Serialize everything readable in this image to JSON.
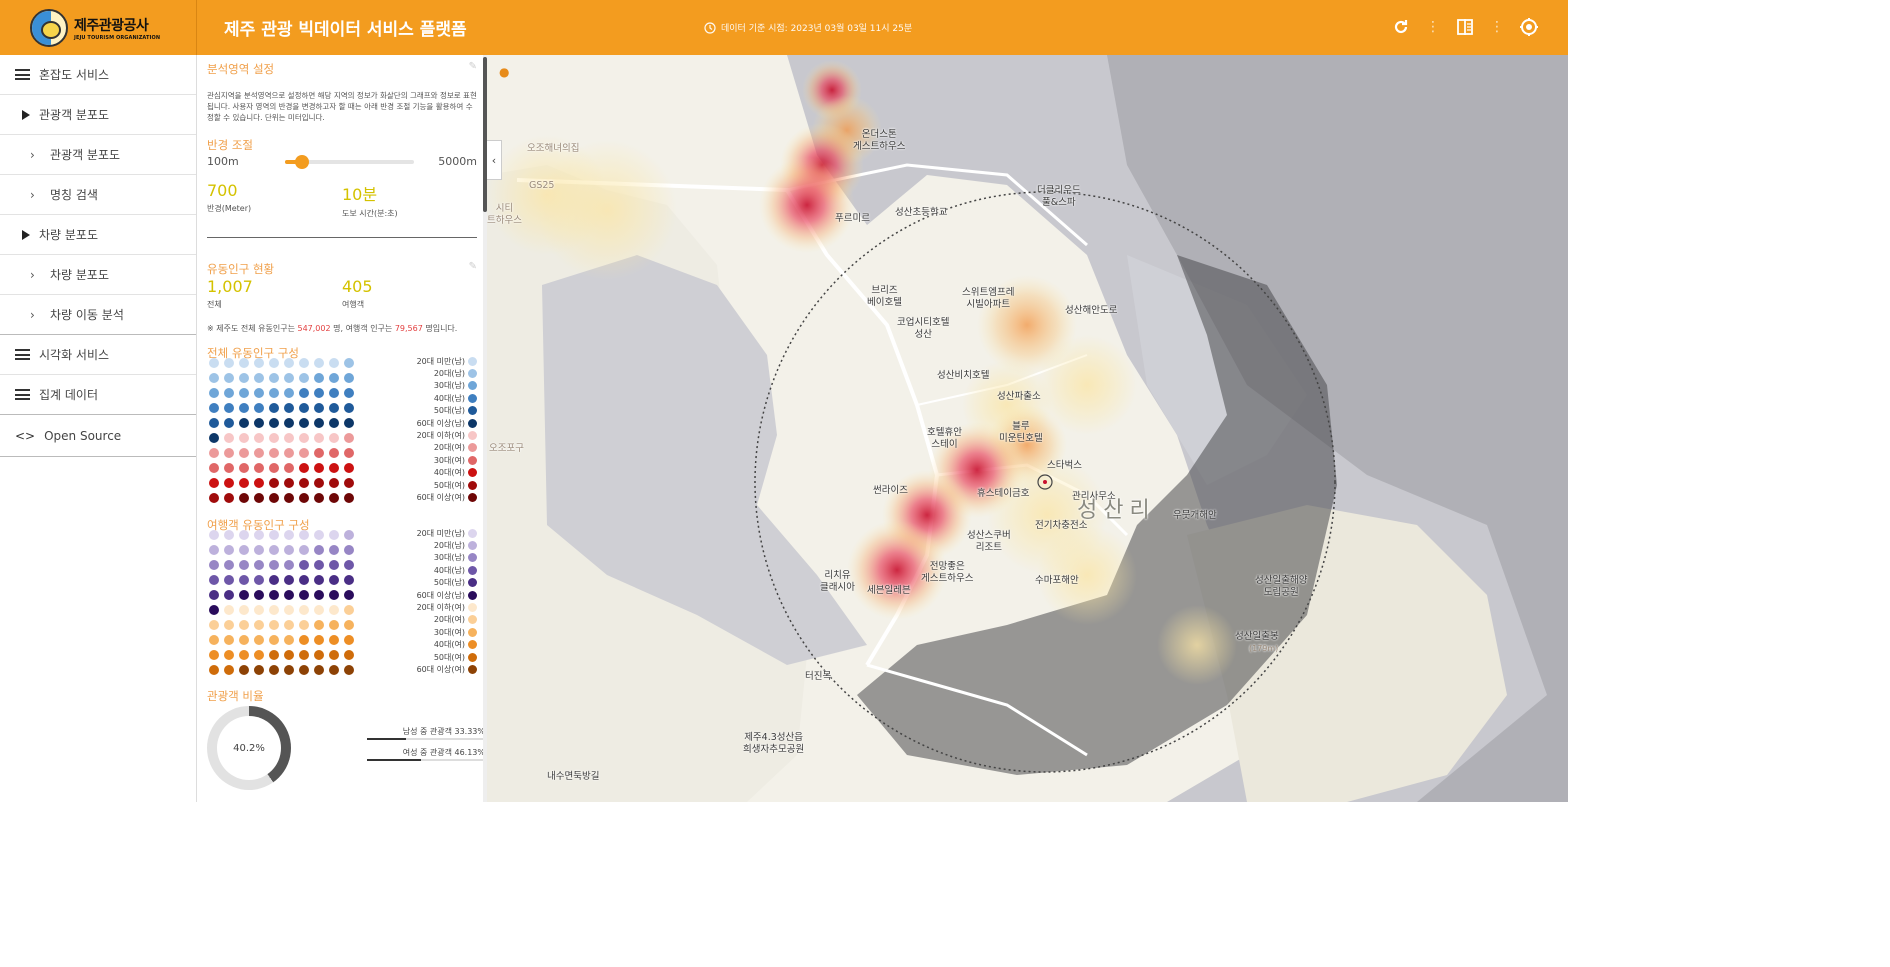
{
  "header": {
    "logo_ko": "제주관광공사",
    "logo_en": "JEJU TOURISM ORGANIZATION",
    "title": "제주 관광 빅데이터 서비스 플랫폼",
    "ref_time": "데이터 기준 시점: 2023년 03월 03일 11시 25분",
    "icons": [
      "refresh-icon",
      "split-view-icon",
      "settings-icon"
    ]
  },
  "sidebar": {
    "items": [
      {
        "label": "혼잡도 서비스",
        "level": 0,
        "icon": "menu-icon"
      },
      {
        "label": "관광객 분포도",
        "level": 1,
        "icon": "triangle-icon"
      },
      {
        "label": "관광객 분포도",
        "level": 2,
        "icon": "chevron-right-icon"
      },
      {
        "label": "명칭 검색",
        "level": 2,
        "icon": "chevron-right-icon"
      },
      {
        "label": "차량 분포도",
        "level": 1,
        "icon": "triangle-icon"
      },
      {
        "label": "차량 분포도",
        "level": 2,
        "icon": "chevron-right-icon"
      },
      {
        "label": "차량 이동 분석",
        "level": 2,
        "icon": "chevron-right-icon"
      },
      {
        "label": "시각화 서비스",
        "level": 0,
        "icon": "menu-icon"
      },
      {
        "label": "집계 데이터",
        "level": 0,
        "icon": "menu-icon"
      },
      {
        "label": "Open Source",
        "level": 0,
        "icon": "code-icon"
      }
    ]
  },
  "panel": {
    "area": {
      "title": "분석영역 설정",
      "desc": "관심지역을 분석영역으로 설정하면 해당 지역의 정보가 화살단의 그래프와 정보로 표현됩니다. 사용자 영역의 반경을 변경하고자 할 때는 아래 반경 조절 기능을 활용하여 수정할 수 있습니다. 단위는 미터입니다.",
      "radius_title": "반경 조절",
      "min_label": "100m",
      "max_label": "5000m",
      "radius_value": "700",
      "radius_label": "반경(Meter)",
      "walk_value": "10분",
      "walk_label": "도보 시간(분:초)"
    },
    "pop": {
      "title": "유동인구 현황",
      "total_value": "1,007",
      "total_label": "전체",
      "tourist_value": "405",
      "tourist_label": "여행객",
      "note_pre": "※ 제주도 전체 유동인구는 ",
      "note_total": "547,002",
      "note_mid": " 명, 여행객 인구는 ",
      "note_tourist": "79,567",
      "note_post": " 명입니다."
    },
    "all_comp": {
      "title": "전체 유동인구 구성",
      "legend": [
        {
          "label": "20대 미만(남)",
          "color": "#c9ddf1"
        },
        {
          "label": "20대(남)",
          "color": "#9dc3e6"
        },
        {
          "label": "30대(남)",
          "color": "#6fa6d8"
        },
        {
          "label": "40대(남)",
          "color": "#3f7fc0"
        },
        {
          "label": "50대(남)",
          "color": "#1f5a9a"
        },
        {
          "label": "60대 이상(남)",
          "color": "#0d3768"
        },
        {
          "label": "20대 이하(여)",
          "color": "#f7c6c6"
        },
        {
          "label": "20대(여)",
          "color": "#ec9a9a"
        },
        {
          "label": "30대(여)",
          "color": "#e06767"
        },
        {
          "label": "40대(여)",
          "color": "#cc1111"
        },
        {
          "label": "50대(여)",
          "color": "#a00b0b"
        },
        {
          "label": "60대 이상(여)",
          "color": "#6e0606"
        }
      ]
    },
    "tour_comp": {
      "title": "여행객 유동인구 구성",
      "legend": [
        {
          "label": "20대 미만(남)",
          "color": "#dcd5ee"
        },
        {
          "label": "20대(남)",
          "color": "#bdb1dc"
        },
        {
          "label": "30대(남)",
          "color": "#9786c5"
        },
        {
          "label": "40대(남)",
          "color": "#6e57a8"
        },
        {
          "label": "50대(남)",
          "color": "#4a2e85"
        },
        {
          "label": "60대 이상(남)",
          "color": "#2a0c5c"
        },
        {
          "label": "20대 이하(여)",
          "color": "#fde8cc"
        },
        {
          "label": "20대(여)",
          "color": "#fbcf97"
        },
        {
          "label": "30대(여)",
          "color": "#f6b25d"
        },
        {
          "label": "40대(여)",
          "color": "#ed8e25"
        },
        {
          "label": "50대(여)",
          "color": "#cf6c0a"
        },
        {
          "label": "60대 이상(여)",
          "color": "#8d4205"
        }
      ]
    },
    "ratio": {
      "title": "관광객 비율",
      "center": "40.2%",
      "percent": 40.2,
      "male_label": "남성 중 관광객 33.33%",
      "male_percent": 33.33,
      "female_label": "여성 중 관광객 46.13%",
      "female_percent": 46.13
    }
  },
  "map": {
    "labels": {
      "ozo": "오조해녀의집",
      "gs25": "GS25",
      "city": "시티\n트하우스",
      "onder": "온더스톤\n게스트하우스",
      "puremi": "푸르미르",
      "school": "성산초등학교",
      "doubletree": "더클리우드\n풀&스파",
      "breeze": "브리즈\n베이호텔",
      "sweet": "스위트엠프레\n시빌아파트",
      "coop": "코업시티호텔\n성산",
      "haean": "성산해안도로",
      "bichi": "성산비치호텔",
      "police": "성산파출소",
      "blue": "블루\n미운틴호텔",
      "hotelhue": "호텔휴안\n스테이",
      "starbucks": "스타벅스",
      "ojopo": "오조포구",
      "sunrise": "썬라이즈",
      "hugstay": "휴스테이금호",
      "office": "관리사무소",
      "charging": "전기차충전소",
      "seongsanri": "성산리",
      "umuri": "우뭇개해안",
      "scuba": "성산스쿠버\n리조트",
      "jeonmang": "전망좋은\n게스트하우스",
      "richi": "리치유\n클래시아",
      "semart": "세븐일레븐",
      "sumap": "수마포해안",
      "park": "성산일출해양\n도립공원",
      "peak": "성산일출봉",
      "peak_h": "(179m)",
      "tijin": "터진목",
      "memorial": "제주4.3성산읍\n희생자추모공원",
      "naesu": "내수면둑방길"
    }
  }
}
